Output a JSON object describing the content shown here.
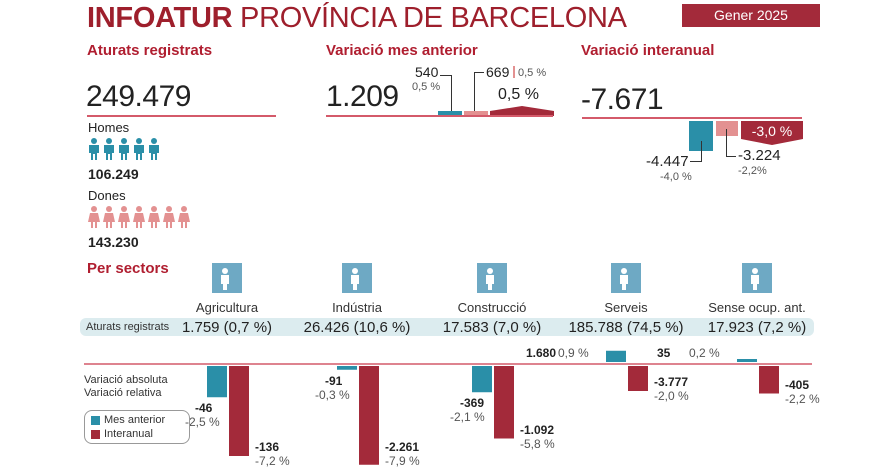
{
  "header": {
    "title_bold": "INFOATUR",
    "title_rest": "PROVÍNCIA DE BARCELONA",
    "period": "Gener 2025"
  },
  "colors": {
    "brand": "#9e1f2c",
    "mes_anterior": "#2a8fa8",
    "interanual": "#a32a3a",
    "dones": "#e39191",
    "icon_bg": "#6ea9c4"
  },
  "summary": {
    "aturats": {
      "label": "Aturats registrats",
      "value": "249.479"
    },
    "homes": {
      "label": "Homes",
      "value": "106.249"
    },
    "dones": {
      "label": "Dones",
      "value": "143.230"
    },
    "mes_anterior": {
      "label": "Variació mes anterior",
      "value": "1.209",
      "homes_value": "540",
      "homes_pct": "0,5 %",
      "dones_value": "669",
      "dones_pct": "0,5 %",
      "total_pct": "0,5 %"
    },
    "interanual": {
      "label": "Variació interanual",
      "value": "-7.671",
      "homes_value": "-4.447",
      "homes_pct": "-4,0 %",
      "dones_value": "-3.224",
      "dones_pct": "-2,2%",
      "total_pct": "-3,0 %"
    }
  },
  "sectors": {
    "title": "Per sectors",
    "row_label": "Aturats registrats",
    "legend_abs": "Variació absoluta",
    "legend_rel": "Variació relativa",
    "legend_mes": "Mes anterior",
    "legend_inter": "Interanual",
    "items": [
      {
        "name": "Agricultura",
        "value": "1.759 (0,7 %)",
        "icon": "agriculture-icon"
      },
      {
        "name": "Indústria",
        "value": "26.426 (10,6 %)",
        "icon": "industry-icon"
      },
      {
        "name": "Construcció",
        "value": "17.583 (7,0 %)",
        "icon": "construction-icon"
      },
      {
        "name": "Serveis",
        "value": "185.788 (74,5 %)",
        "icon": "services-icon"
      },
      {
        "name": "Sense ocup. ant.",
        "value": "17.923 (7,2 %)",
        "icon": "person-icon"
      }
    ]
  },
  "chart_data": {
    "type": "bar",
    "categories": [
      "Agricultura",
      "Indústria",
      "Construcció",
      "Serveis",
      "Sense ocup. ant."
    ],
    "series": [
      {
        "name": "Mes anterior",
        "values": [
          -46,
          -91,
          -369,
          1680,
          35
        ],
        "labels": [
          "-46",
          "-91",
          "-369",
          "1.680",
          "35"
        ],
        "pct": [
          "-2,5 %",
          "-0,3 %",
          "-2,1 %",
          "0,9 %",
          "0,2 %"
        ]
      },
      {
        "name": "Interanual",
        "values": [
          -136,
          -2261,
          -1092,
          -3777,
          -405
        ],
        "labels": [
          "-136",
          "-2.261",
          "-1.092",
          "-3.777",
          "-405"
        ],
        "pct": [
          "-7,2 %",
          "-7,9 %",
          "-5,8 %",
          "-2,0 %",
          "-2,2 %"
        ]
      }
    ],
    "pct_values": {
      "Mes anterior": [
        -2.5,
        -0.3,
        -2.1,
        0.9,
        0.2
      ],
      "Interanual": [
        -7.2,
        -7.9,
        -5.8,
        -2.0,
        -2.2
      ]
    }
  }
}
